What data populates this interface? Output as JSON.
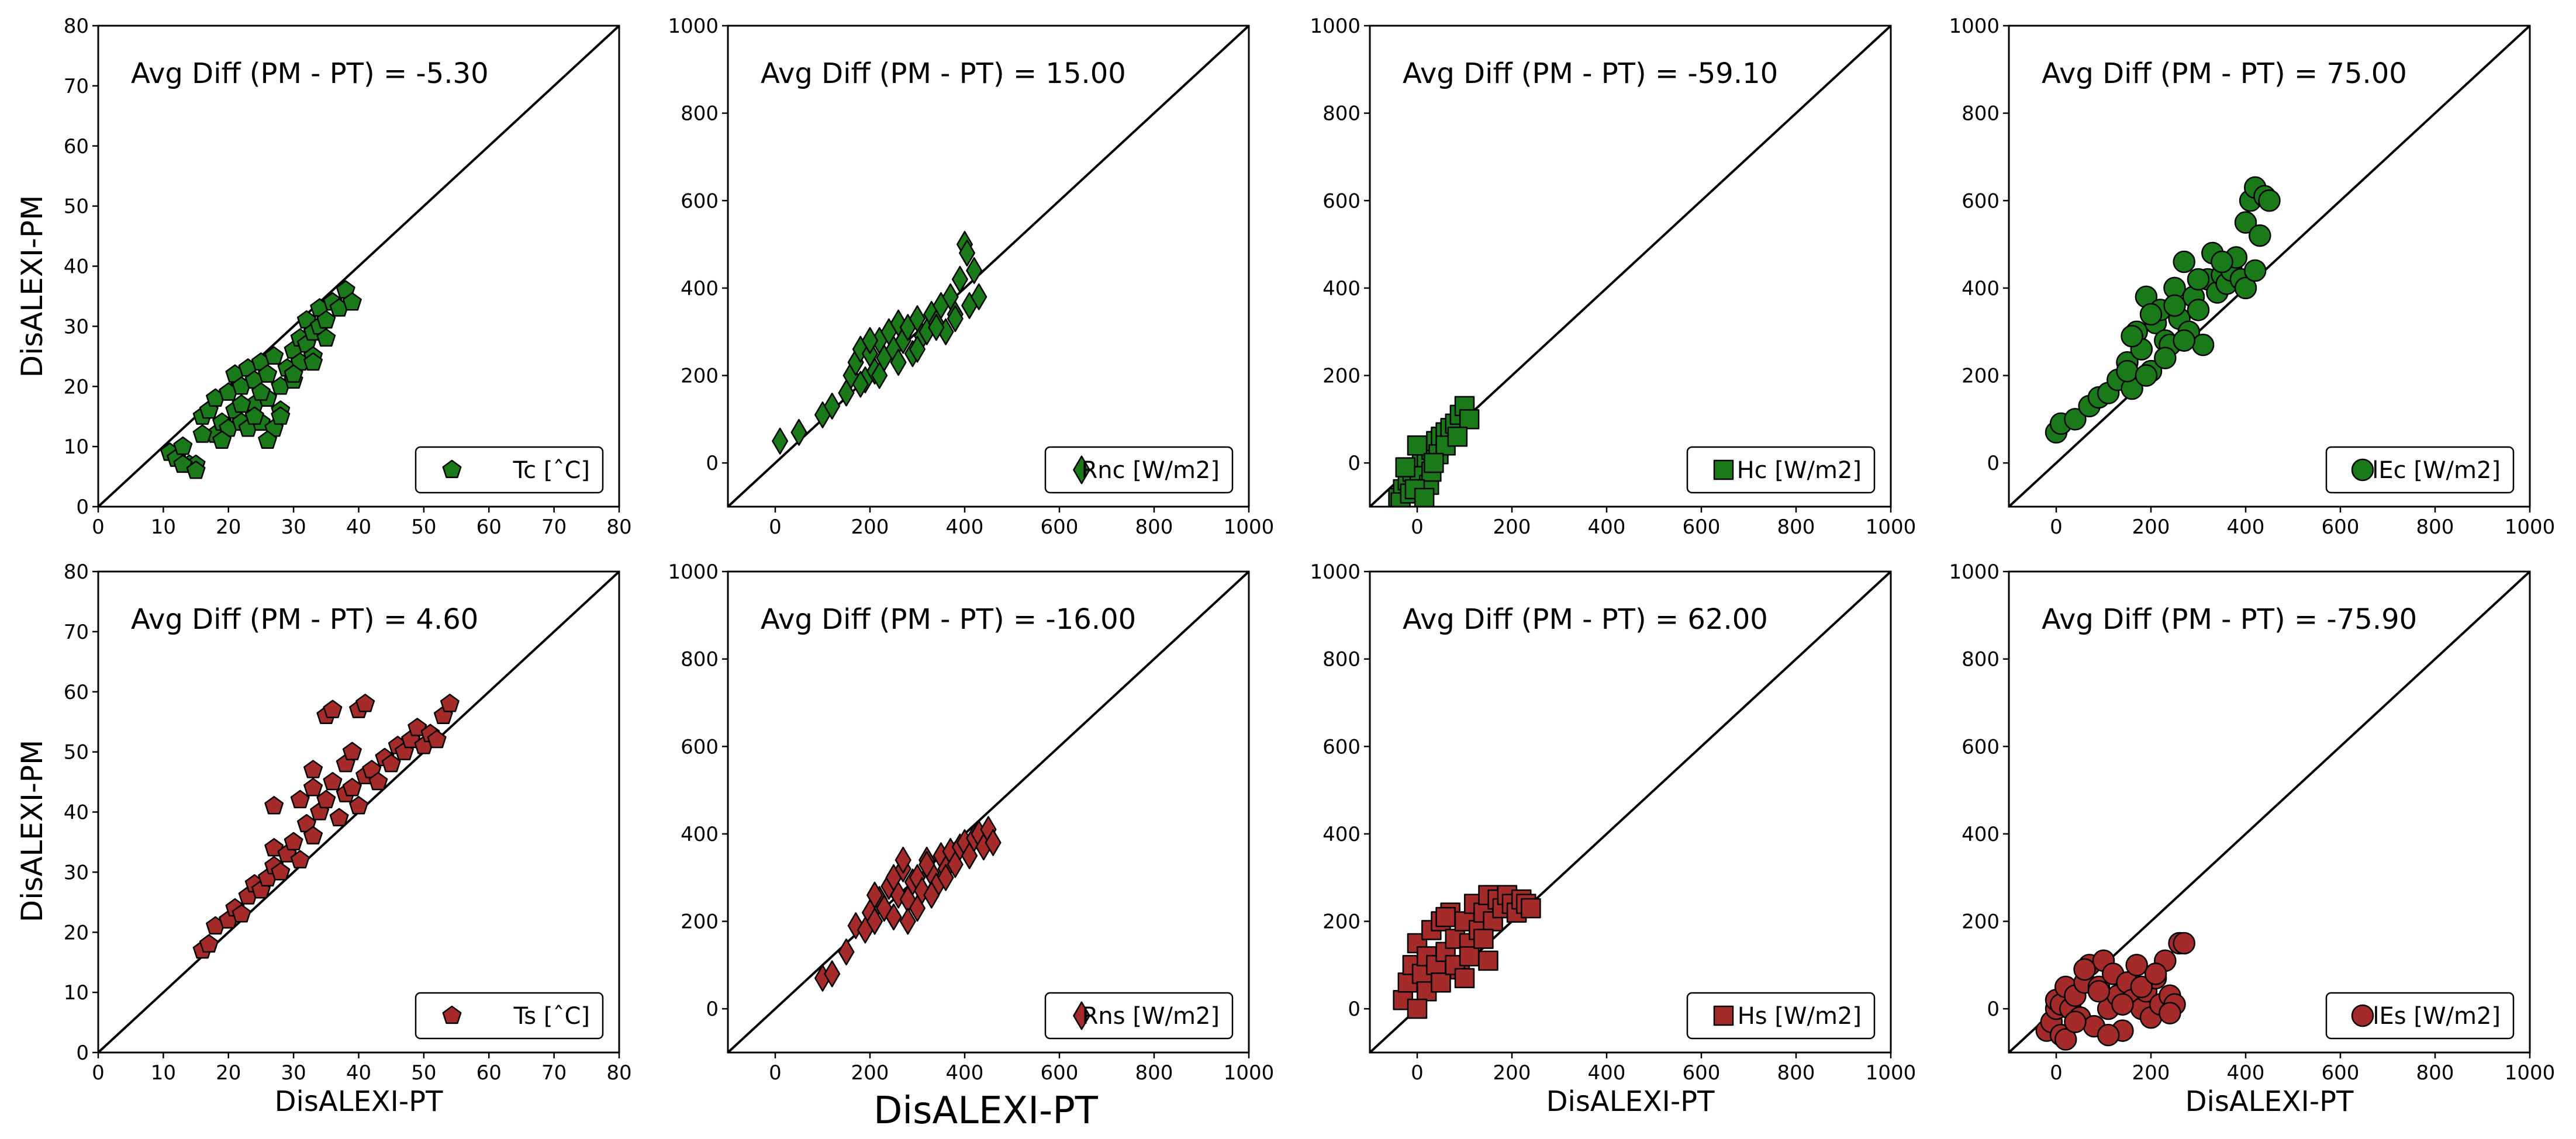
{
  "figure": {
    "ylabel_left": "DisALEXI-PM",
    "xlabel_bottom": "DisALEXI-PT",
    "colors": {
      "green": "#1a7a1a",
      "red": "#a52a2a",
      "edge": "#000000"
    }
  },
  "chart_data": [
    {
      "type": "scatter",
      "id": "tc",
      "title": "",
      "marker": "pentagon",
      "color": "#1a7a1a",
      "legend": "Tc [$^\\circ$C]",
      "legend_text": "Tc [ˆC]",
      "legend_loc": "lower-right",
      "annotation": "Avg Diff (PM - PT) = -5.30",
      "xlim": [
        0,
        80
      ],
      "ylim": [
        0,
        80
      ],
      "xticks": [
        "0",
        "10",
        "20",
        "30",
        "40",
        "50",
        "60",
        "70",
        "80"
      ],
      "yticks": [
        "0",
        "10",
        "20",
        "30",
        "40",
        "50",
        "60",
        "70",
        "80"
      ],
      "xlabel": "",
      "ylabel": "DisALEXI-PM",
      "x": [
        11,
        12,
        13,
        14,
        15,
        16,
        17,
        18,
        18,
        19,
        20,
        20,
        21,
        21,
        22,
        22,
        23,
        23,
        24,
        24,
        25,
        25,
        26,
        26,
        27,
        27,
        28,
        28,
        29,
        30,
        30,
        31,
        31,
        32,
        32,
        33,
        33,
        34,
        34,
        35,
        35,
        36,
        37,
        38,
        39,
        16,
        19,
        22,
        25,
        28,
        13,
        15,
        24,
        26,
        30,
        33
      ],
      "y": [
        9,
        8,
        10,
        7,
        7,
        15,
        16,
        12,
        18,
        14,
        19,
        13,
        22,
        16,
        20,
        14,
        23,
        13,
        21,
        17,
        24,
        14,
        22,
        18,
        25,
        13,
        20,
        16,
        23,
        26,
        21,
        28,
        24,
        27,
        31,
        29,
        25,
        30,
        33,
        31,
        28,
        34,
        33,
        36,
        34,
        12,
        11,
        17,
        19,
        15,
        7,
        6,
        15,
        11,
        22,
        24
      ]
    },
    {
      "type": "scatter",
      "id": "rnc",
      "title": "",
      "marker": "diamond",
      "color": "#1a7a1a",
      "legend": "Rnc [W/m2]",
      "legend_text": "Rnc [W/m2]",
      "legend_loc": "lower-right",
      "annotation": "Avg Diff (PM - PT) = 15.00",
      "xlim": [
        -100,
        1000
      ],
      "ylim": [
        -100,
        1000
      ],
      "xticks": [
        "0",
        "200",
        "400",
        "600",
        "800",
        "1000"
      ],
      "yticks": [
        "0",
        "200",
        "400",
        "600",
        "800",
        "1000"
      ],
      "xlabel": "",
      "ylabel": "",
      "x": [
        10,
        50,
        100,
        120,
        150,
        160,
        170,
        180,
        190,
        200,
        210,
        220,
        230,
        240,
        250,
        260,
        270,
        280,
        290,
        300,
        310,
        320,
        330,
        340,
        350,
        360,
        370,
        380,
        390,
        400,
        410,
        420,
        430,
        180,
        200,
        220,
        260,
        300,
        340,
        380,
        405
      ],
      "y": [
        50,
        70,
        110,
        130,
        160,
        200,
        230,
        260,
        190,
        250,
        210,
        280,
        240,
        300,
        260,
        320,
        280,
        310,
        250,
        330,
        290,
        300,
        340,
        320,
        360,
        300,
        380,
        340,
        420,
        500,
        360,
        440,
        380,
        180,
        280,
        200,
        230,
        260,
        310,
        330,
        480
      ]
    },
    {
      "type": "scatter",
      "id": "hc",
      "title": "",
      "marker": "square",
      "color": "#1a7a1a",
      "legend": "Hc [W/m2]",
      "legend_text": "Hc [W/m2]",
      "legend_loc": "lower-right",
      "annotation": "Avg Diff (PM - PT) = -59.10",
      "xlim": [
        -100,
        1000
      ],
      "ylim": [
        -100,
        1000
      ],
      "xticks": [
        "0",
        "200",
        "400",
        "600",
        "800",
        "1000"
      ],
      "yticks": [
        "0",
        "200",
        "400",
        "600",
        "800",
        "1000"
      ],
      "xlabel": "",
      "ylabel": "",
      "x": [
        -40,
        -30,
        -20,
        -10,
        0,
        10,
        20,
        30,
        40,
        50,
        60,
        70,
        80,
        90,
        100,
        110,
        -35,
        -15,
        5,
        25,
        45,
        -25,
        0,
        30,
        60,
        85,
        -5,
        15,
        35
      ],
      "y": [
        -80,
        -60,
        -40,
        -20,
        -10,
        0,
        10,
        30,
        50,
        60,
        70,
        80,
        90,
        110,
        130,
        100,
        -90,
        -70,
        -30,
        -50,
        20,
        -10,
        40,
        -20,
        40,
        60,
        -60,
        -80,
        0
      ]
    },
    {
      "type": "scatter",
      "id": "lec",
      "title": "",
      "marker": "circle",
      "color": "#1a7a1a",
      "legend": "lEc [W/m2]",
      "legend_text": "lEc [W/m2]",
      "legend_loc": "lower-right",
      "annotation": "Avg Diff (PM - PT) = 75.00",
      "xlim": [
        -100,
        1000
      ],
      "ylim": [
        -100,
        1000
      ],
      "xticks": [
        "0",
        "200",
        "400",
        "600",
        "800",
        "1000"
      ],
      "yticks": [
        "0",
        "200",
        "400",
        "600",
        "800",
        "1000"
      ],
      "xlabel": "",
      "ylabel": "",
      "x": [
        0,
        10,
        40,
        70,
        90,
        110,
        130,
        150,
        160,
        170,
        180,
        190,
        200,
        210,
        220,
        230,
        240,
        250,
        260,
        270,
        280,
        290,
        300,
        310,
        320,
        330,
        340,
        350,
        360,
        370,
        380,
        390,
        400,
        410,
        420,
        430,
        440,
        450,
        160,
        200,
        250,
        300,
        350,
        400,
        420,
        150,
        190,
        230,
        270
      ],
      "y": [
        70,
        90,
        100,
        130,
        150,
        160,
        190,
        230,
        170,
        300,
        260,
        380,
        210,
        320,
        350,
        280,
        270,
        400,
        330,
        460,
        300,
        380,
        350,
        270,
        420,
        480,
        390,
        430,
        410,
        440,
        470,
        420,
        550,
        600,
        630,
        520,
        610,
        600,
        290,
        340,
        360,
        420,
        460,
        400,
        440,
        210,
        200,
        240,
        280
      ]
    },
    {
      "type": "scatter",
      "id": "ts",
      "title": "",
      "marker": "pentagon",
      "color": "#a52a2a",
      "legend": "Ts [$^\\circ$C]",
      "legend_text": "Ts [ˆC]",
      "legend_loc": "lower-right",
      "annotation": "Avg Diff (PM - PT) = 4.60",
      "xlim": [
        0,
        80
      ],
      "ylim": [
        0,
        80
      ],
      "xticks": [
        "0",
        "10",
        "20",
        "30",
        "40",
        "50",
        "60",
        "70",
        "80"
      ],
      "yticks": [
        "0",
        "10",
        "20",
        "30",
        "40",
        "50",
        "60",
        "70",
        "80"
      ],
      "xlabel": "DisALEXI-PT",
      "ylabel": "DisALEXI-PM",
      "x": [
        16,
        17,
        18,
        20,
        21,
        22,
        23,
        24,
        25,
        26,
        27,
        27,
        28,
        29,
        30,
        31,
        32,
        33,
        33,
        34,
        35,
        36,
        37,
        38,
        39,
        40,
        41,
        42,
        43,
        44,
        45,
        46,
        47,
        48,
        49,
        50,
        51,
        52,
        53,
        54,
        35,
        36,
        40,
        41,
        33,
        38,
        27,
        39,
        31
      ],
      "y": [
        17,
        18,
        21,
        22,
        24,
        23,
        26,
        28,
        27,
        29,
        31,
        34,
        30,
        33,
        35,
        32,
        38,
        36,
        44,
        40,
        42,
        45,
        39,
        43,
        44,
        41,
        46,
        47,
        45,
        49,
        48,
        51,
        50,
        52,
        54,
        51,
        53,
        52,
        56,
        58,
        56,
        57,
        57,
        58,
        47,
        48,
        41,
        50,
        42
      ]
    },
    {
      "type": "scatter",
      "id": "rns",
      "title": "",
      "marker": "diamond",
      "color": "#a52a2a",
      "legend": "Rns [W/m2]",
      "legend_text": "Rns [W/m2]",
      "legend_loc": "lower-right",
      "annotation": "Avg Diff (PM - PT) = -16.00",
      "xlim": [
        -100,
        1000
      ],
      "ylim": [
        -100,
        1000
      ],
      "xticks": [
        "0",
        "200",
        "400",
        "600",
        "800",
        "1000"
      ],
      "yticks": [
        "0",
        "200",
        "400",
        "600",
        "800",
        "1000"
      ],
      "xlabel": "",
      "ylabel": "",
      "x": [
        100,
        120,
        150,
        170,
        190,
        200,
        210,
        220,
        230,
        240,
        250,
        260,
        270,
        280,
        290,
        300,
        310,
        320,
        330,
        340,
        350,
        360,
        370,
        380,
        390,
        400,
        410,
        420,
        430,
        440,
        450,
        460,
        250,
        270,
        300,
        330,
        360,
        210,
        280,
        320
      ],
      "y": [
        70,
        80,
        130,
        190,
        180,
        220,
        200,
        250,
        230,
        280,
        300,
        260,
        320,
        250,
        290,
        300,
        270,
        340,
        310,
        280,
        350,
        320,
        360,
        330,
        370,
        380,
        350,
        390,
        400,
        370,
        410,
        380,
        210,
        340,
        230,
        260,
        300,
        260,
        200,
        330
      ]
    },
    {
      "type": "scatter",
      "id": "hs",
      "title": "",
      "marker": "square",
      "color": "#a52a2a",
      "legend": "Hs [W/m2]",
      "legend_text": "Hs [W/m2]",
      "legend_loc": "lower-right",
      "annotation": "Avg Diff (PM - PT) = 62.00",
      "xlim": [
        -100,
        1000
      ],
      "ylim": [
        -100,
        1000
      ],
      "xticks": [
        "0",
        "200",
        "400",
        "600",
        "800",
        "1000"
      ],
      "yticks": [
        "0",
        "200",
        "400",
        "600",
        "800",
        "1000"
      ],
      "xlabel": "DisALEXI-PT",
      "ylabel": "",
      "x": [
        -30,
        -20,
        -10,
        0,
        10,
        20,
        30,
        40,
        50,
        60,
        70,
        80,
        90,
        100,
        110,
        120,
        130,
        140,
        150,
        160,
        170,
        180,
        190,
        200,
        210,
        220,
        230,
        240,
        20,
        50,
        80,
        110,
        140,
        0,
        60,
        100,
        150
      ],
      "y": [
        20,
        60,
        100,
        150,
        80,
        120,
        180,
        100,
        200,
        130,
        220,
        160,
        90,
        200,
        150,
        240,
        180,
        220,
        260,
        200,
        250,
        230,
        260,
        240,
        220,
        250,
        240,
        230,
        40,
        60,
        100,
        120,
        160,
        0,
        210,
        70,
        110
      ]
    },
    {
      "type": "scatter",
      "id": "les",
      "title": "",
      "marker": "circle",
      "color": "#a52a2a",
      "legend": "lEs [W/m2]",
      "legend_text": "lEs [W/m2]",
      "legend_loc": "lower-right",
      "annotation": "Avg Diff (PM - PT) = -75.90",
      "xlim": [
        -100,
        1000
      ],
      "ylim": [
        -100,
        1000
      ],
      "xticks": [
        "0",
        "200",
        "400",
        "600",
        "800",
        "1000"
      ],
      "yticks": [
        "0",
        "200",
        "400",
        "600",
        "800",
        "1000"
      ],
      "xlabel": "DisALEXI-PT",
      "ylabel": "",
      "x": [
        -20,
        -10,
        0,
        0,
        10,
        10,
        20,
        20,
        30,
        40,
        50,
        60,
        70,
        80,
        90,
        100,
        110,
        120,
        130,
        140,
        150,
        160,
        170,
        180,
        190,
        200,
        210,
        220,
        230,
        240,
        250,
        260,
        270,
        40,
        60,
        90,
        110,
        140,
        180,
        210,
        240
      ],
      "y": [
        -50,
        -30,
        0,
        20,
        -60,
        10,
        50,
        -70,
        0,
        30,
        -20,
        60,
        100,
        -40,
        50,
        110,
        0,
        80,
        30,
        -50,
        60,
        20,
        100,
        0,
        40,
        -20,
        70,
        10,
        110,
        30,
        10,
        150,
        150,
        -30,
        90,
        40,
        -60,
        10,
        50,
        80,
        -10
      ]
    }
  ]
}
